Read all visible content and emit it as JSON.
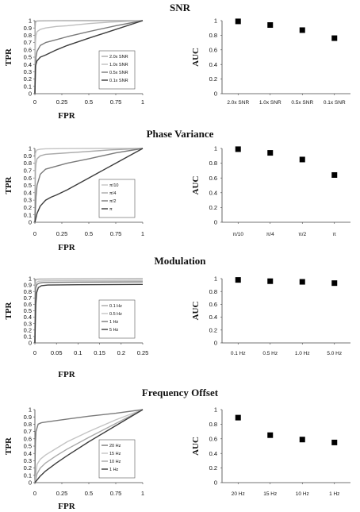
{
  "chart_data": [
    {
      "title": "SNR",
      "roc": {
        "type": "line",
        "xlabel": "FPR",
        "ylabel": "TPR",
        "xlim": [
          0,
          1
        ],
        "ylim": [
          0,
          1
        ],
        "xticks": [
          "0",
          "0.25",
          "0.5",
          "0.75",
          "1"
        ],
        "yticks": [
          "0",
          "0.1",
          "0.2",
          "0.3",
          "0.4",
          "0.5",
          "0.6",
          "0.7",
          "0.8",
          "0.9",
          "1"
        ],
        "series": [
          {
            "name": "2.0x SNR",
            "color": "#a9a9a9",
            "x": [
              0,
              0.002,
              0.005,
              0.01,
              0.02,
              0.05,
              0.1,
              0.2,
              0.5,
              1
            ],
            "y": [
              0,
              0.9,
              0.97,
              0.99,
              0.995,
              0.997,
              0.998,
              0.999,
              1,
              1
            ]
          },
          {
            "name": "1.0x SNR",
            "color": "#bebebe",
            "x": [
              0,
              0.005,
              0.01,
              0.02,
              0.05,
              0.1,
              0.2,
              0.3,
              0.5,
              0.7,
              1
            ],
            "y": [
              0,
              0.7,
              0.8,
              0.85,
              0.88,
              0.9,
              0.92,
              0.93,
              0.96,
              0.98,
              1
            ]
          },
          {
            "name": "0.5x SNR",
            "color": "#7a7a7a",
            "x": [
              0,
              0.01,
              0.02,
              0.05,
              0.1,
              0.2,
              0.3,
              0.5,
              0.75,
              1
            ],
            "y": [
              0,
              0.5,
              0.58,
              0.66,
              0.7,
              0.74,
              0.78,
              0.85,
              0.93,
              1
            ]
          },
          {
            "name": "0.1x SNR",
            "color": "#3c3c3c",
            "x": [
              0,
              0.005,
              0.02,
              0.05,
              0.1,
              0.2,
              0.3,
              0.5,
              0.75,
              1
            ],
            "y": [
              0,
              0.38,
              0.45,
              0.5,
              0.53,
              0.6,
              0.66,
              0.76,
              0.88,
              1
            ]
          }
        ]
      },
      "auc": {
        "type": "scatter",
        "ylabel": "AUC",
        "ylim": [
          0,
          1
        ],
        "yticks": [
          "0",
          "0.2",
          "0.4",
          "0.6",
          "0.8",
          "1"
        ],
        "categories": [
          "2.0x SNR",
          "1.0x SNR",
          "0.5x SNR",
          "0.1x SNR"
        ],
        "values": [
          0.99,
          0.94,
          0.87,
          0.76
        ]
      }
    },
    {
      "title": "Phase Variance",
      "roc": {
        "type": "line",
        "xlabel": "FPR",
        "ylabel": "TPR",
        "xlim": [
          0,
          1
        ],
        "ylim": [
          0,
          1
        ],
        "xticks": [
          "0",
          "0.25",
          "0.5",
          "0.75",
          "1"
        ],
        "yticks": [
          "0",
          "0.1",
          "0.2",
          "0.3",
          "0.4",
          "0.5",
          "0.6",
          "0.7",
          "0.8",
          "0.9",
          "1"
        ],
        "series": [
          {
            "name": "π/10",
            "color": "#c4c4c4",
            "x": [
              0,
              0.002,
              0.005,
              0.01,
              0.02,
              0.05,
              0.1,
              0.3,
              0.6,
              1
            ],
            "y": [
              0,
              0.85,
              0.93,
              0.96,
              0.98,
              0.99,
              0.995,
              0.998,
              1,
              1
            ]
          },
          {
            "name": "π/4",
            "color": "#a9a9a9",
            "x": [
              0,
              0.005,
              0.01,
              0.02,
              0.05,
              0.1,
              0.2,
              0.4,
              0.7,
              1
            ],
            "y": [
              0,
              0.7,
              0.8,
              0.86,
              0.9,
              0.92,
              0.93,
              0.95,
              0.98,
              1
            ]
          },
          {
            "name": "π/2",
            "color": "#7a7a7a",
            "x": [
              0,
              0.01,
              0.02,
              0.05,
              0.1,
              0.2,
              0.3,
              0.5,
              0.75,
              1
            ],
            "y": [
              0,
              0.35,
              0.5,
              0.65,
              0.72,
              0.76,
              0.8,
              0.86,
              0.94,
              1
            ]
          },
          {
            "name": "π",
            "color": "#3c3c3c",
            "x": [
              0,
              0.02,
              0.05,
              0.1,
              0.15,
              0.2,
              0.3,
              0.5,
              0.75,
              1
            ],
            "y": [
              0,
              0.12,
              0.22,
              0.3,
              0.34,
              0.37,
              0.44,
              0.6,
              0.8,
              1
            ]
          }
        ]
      },
      "auc": {
        "type": "scatter",
        "ylabel": "AUC",
        "ylim": [
          0,
          1
        ],
        "yticks": [
          "0",
          "0.2",
          "0.4",
          "0.6",
          "0.8",
          "1"
        ],
        "categories": [
          "π/10",
          "π/4",
          "π/2",
          "π"
        ],
        "values": [
          0.99,
          0.94,
          0.85,
          0.64
        ]
      }
    },
    {
      "title": "Modulation",
      "roc": {
        "type": "line",
        "xlabel": "FPR",
        "ylabel": "TPR",
        "xlim": [
          0,
          0.25
        ],
        "ylim": [
          0,
          1
        ],
        "xticks": [
          "0",
          "0.05",
          "0.1",
          "0.15",
          "0.2",
          "0.25"
        ],
        "yticks": [
          "0",
          "0.1",
          "0.2",
          "0.3",
          "0.4",
          "0.5",
          "0.6",
          "0.7",
          "0.8",
          "0.9",
          "1"
        ],
        "series": [
          {
            "name": "0.1 Hz",
            "color": "#a9a9a9",
            "x": [
              0,
              0.0005,
              0.001,
              0.002,
              0.005,
              0.01,
              0.05,
              0.25
            ],
            "y": [
              0,
              0.9,
              0.96,
              0.98,
              0.99,
              0.993,
              0.995,
              0.997
            ]
          },
          {
            "name": "0.5 Hz",
            "color": "#c4c4c4",
            "x": [
              0,
              0.001,
              0.002,
              0.004,
              0.008,
              0.02,
              0.1,
              0.25
            ],
            "y": [
              0,
              0.8,
              0.9,
              0.94,
              0.96,
              0.965,
              0.968,
              0.97
            ]
          },
          {
            "name": "1 Hz",
            "color": "#7a7a7a",
            "x": [
              0,
              0.001,
              0.002,
              0.005,
              0.01,
              0.02,
              0.1,
              0.25
            ],
            "y": [
              0,
              0.75,
              0.86,
              0.91,
              0.93,
              0.94,
              0.945,
              0.95
            ]
          },
          {
            "name": "5 Hz",
            "color": "#3c3c3c",
            "x": [
              0,
              0.002,
              0.004,
              0.008,
              0.015,
              0.03,
              0.1,
              0.25
            ],
            "y": [
              0,
              0.6,
              0.78,
              0.86,
              0.89,
              0.9,
              0.905,
              0.91
            ]
          }
        ]
      },
      "auc": {
        "type": "scatter",
        "ylabel": "AUC",
        "ylim": [
          0,
          1
        ],
        "yticks": [
          "0",
          "0.2",
          "0.4",
          "0.6",
          "0.8",
          "1"
        ],
        "categories": [
          "0.1 Hz",
          "0.5 Hz",
          "1.0 Hz",
          "5.0 Hz"
        ],
        "values": [
          0.98,
          0.96,
          0.95,
          0.93
        ]
      }
    },
    {
      "title": "Frequency Offset",
      "roc": {
        "type": "line",
        "xlabel": "FPR",
        "ylabel": "TPR",
        "xlim": [
          0,
          1
        ],
        "ylim": [
          0,
          1
        ],
        "xticks": [
          "0",
          "0.25",
          "0.5",
          "0.75",
          "1"
        ],
        "yticks": [
          "0",
          "0.1",
          "0.2",
          "0.3",
          "0.4",
          "0.5",
          "0.6",
          "0.7",
          "0.8",
          "0.9",
          "1"
        ],
        "series": [
          {
            "name": "20 Hz",
            "color": "#7a7a7a",
            "x": [
              0,
              0.002,
              0.005,
              0.01,
              0.03,
              0.06,
              0.1,
              0.3,
              0.5,
              0.75,
              1
            ],
            "y": [
              0,
              0.35,
              0.55,
              0.7,
              0.8,
              0.82,
              0.83,
              0.87,
              0.91,
              0.95,
              1
            ]
          },
          {
            "name": "15 Hz",
            "color": "#c4c4c4",
            "x": [
              0,
              0.02,
              0.05,
              0.1,
              0.2,
              0.3,
              0.5,
              0.75,
              1
            ],
            "y": [
              0,
              0.25,
              0.32,
              0.38,
              0.47,
              0.56,
              0.7,
              0.86,
              1
            ]
          },
          {
            "name": "10 Hz",
            "color": "#a9a9a9",
            "x": [
              0,
              0.02,
              0.05,
              0.1,
              0.2,
              0.3,
              0.5,
              0.75,
              1
            ],
            "y": [
              0,
              0.12,
              0.2,
              0.27,
              0.37,
              0.46,
              0.62,
              0.81,
              1
            ]
          },
          {
            "name": "1 Hz",
            "color": "#3c3c3c",
            "x": [
              0,
              0.05,
              0.1,
              0.2,
              0.3,
              0.5,
              0.75,
              1
            ],
            "y": [
              0,
              0.09,
              0.16,
              0.27,
              0.37,
              0.56,
              0.78,
              1
            ]
          }
        ]
      },
      "auc": {
        "type": "scatter",
        "ylabel": "AUC",
        "ylim": [
          0,
          1
        ],
        "yticks": [
          "0",
          "0.2",
          "0.4",
          "0.6",
          "0.8",
          "1"
        ],
        "categories": [
          "20 Hz",
          "15 Hz",
          "10 Hz",
          "1 Hz"
        ],
        "values": [
          0.89,
          0.65,
          0.59,
          0.55
        ]
      }
    }
  ]
}
